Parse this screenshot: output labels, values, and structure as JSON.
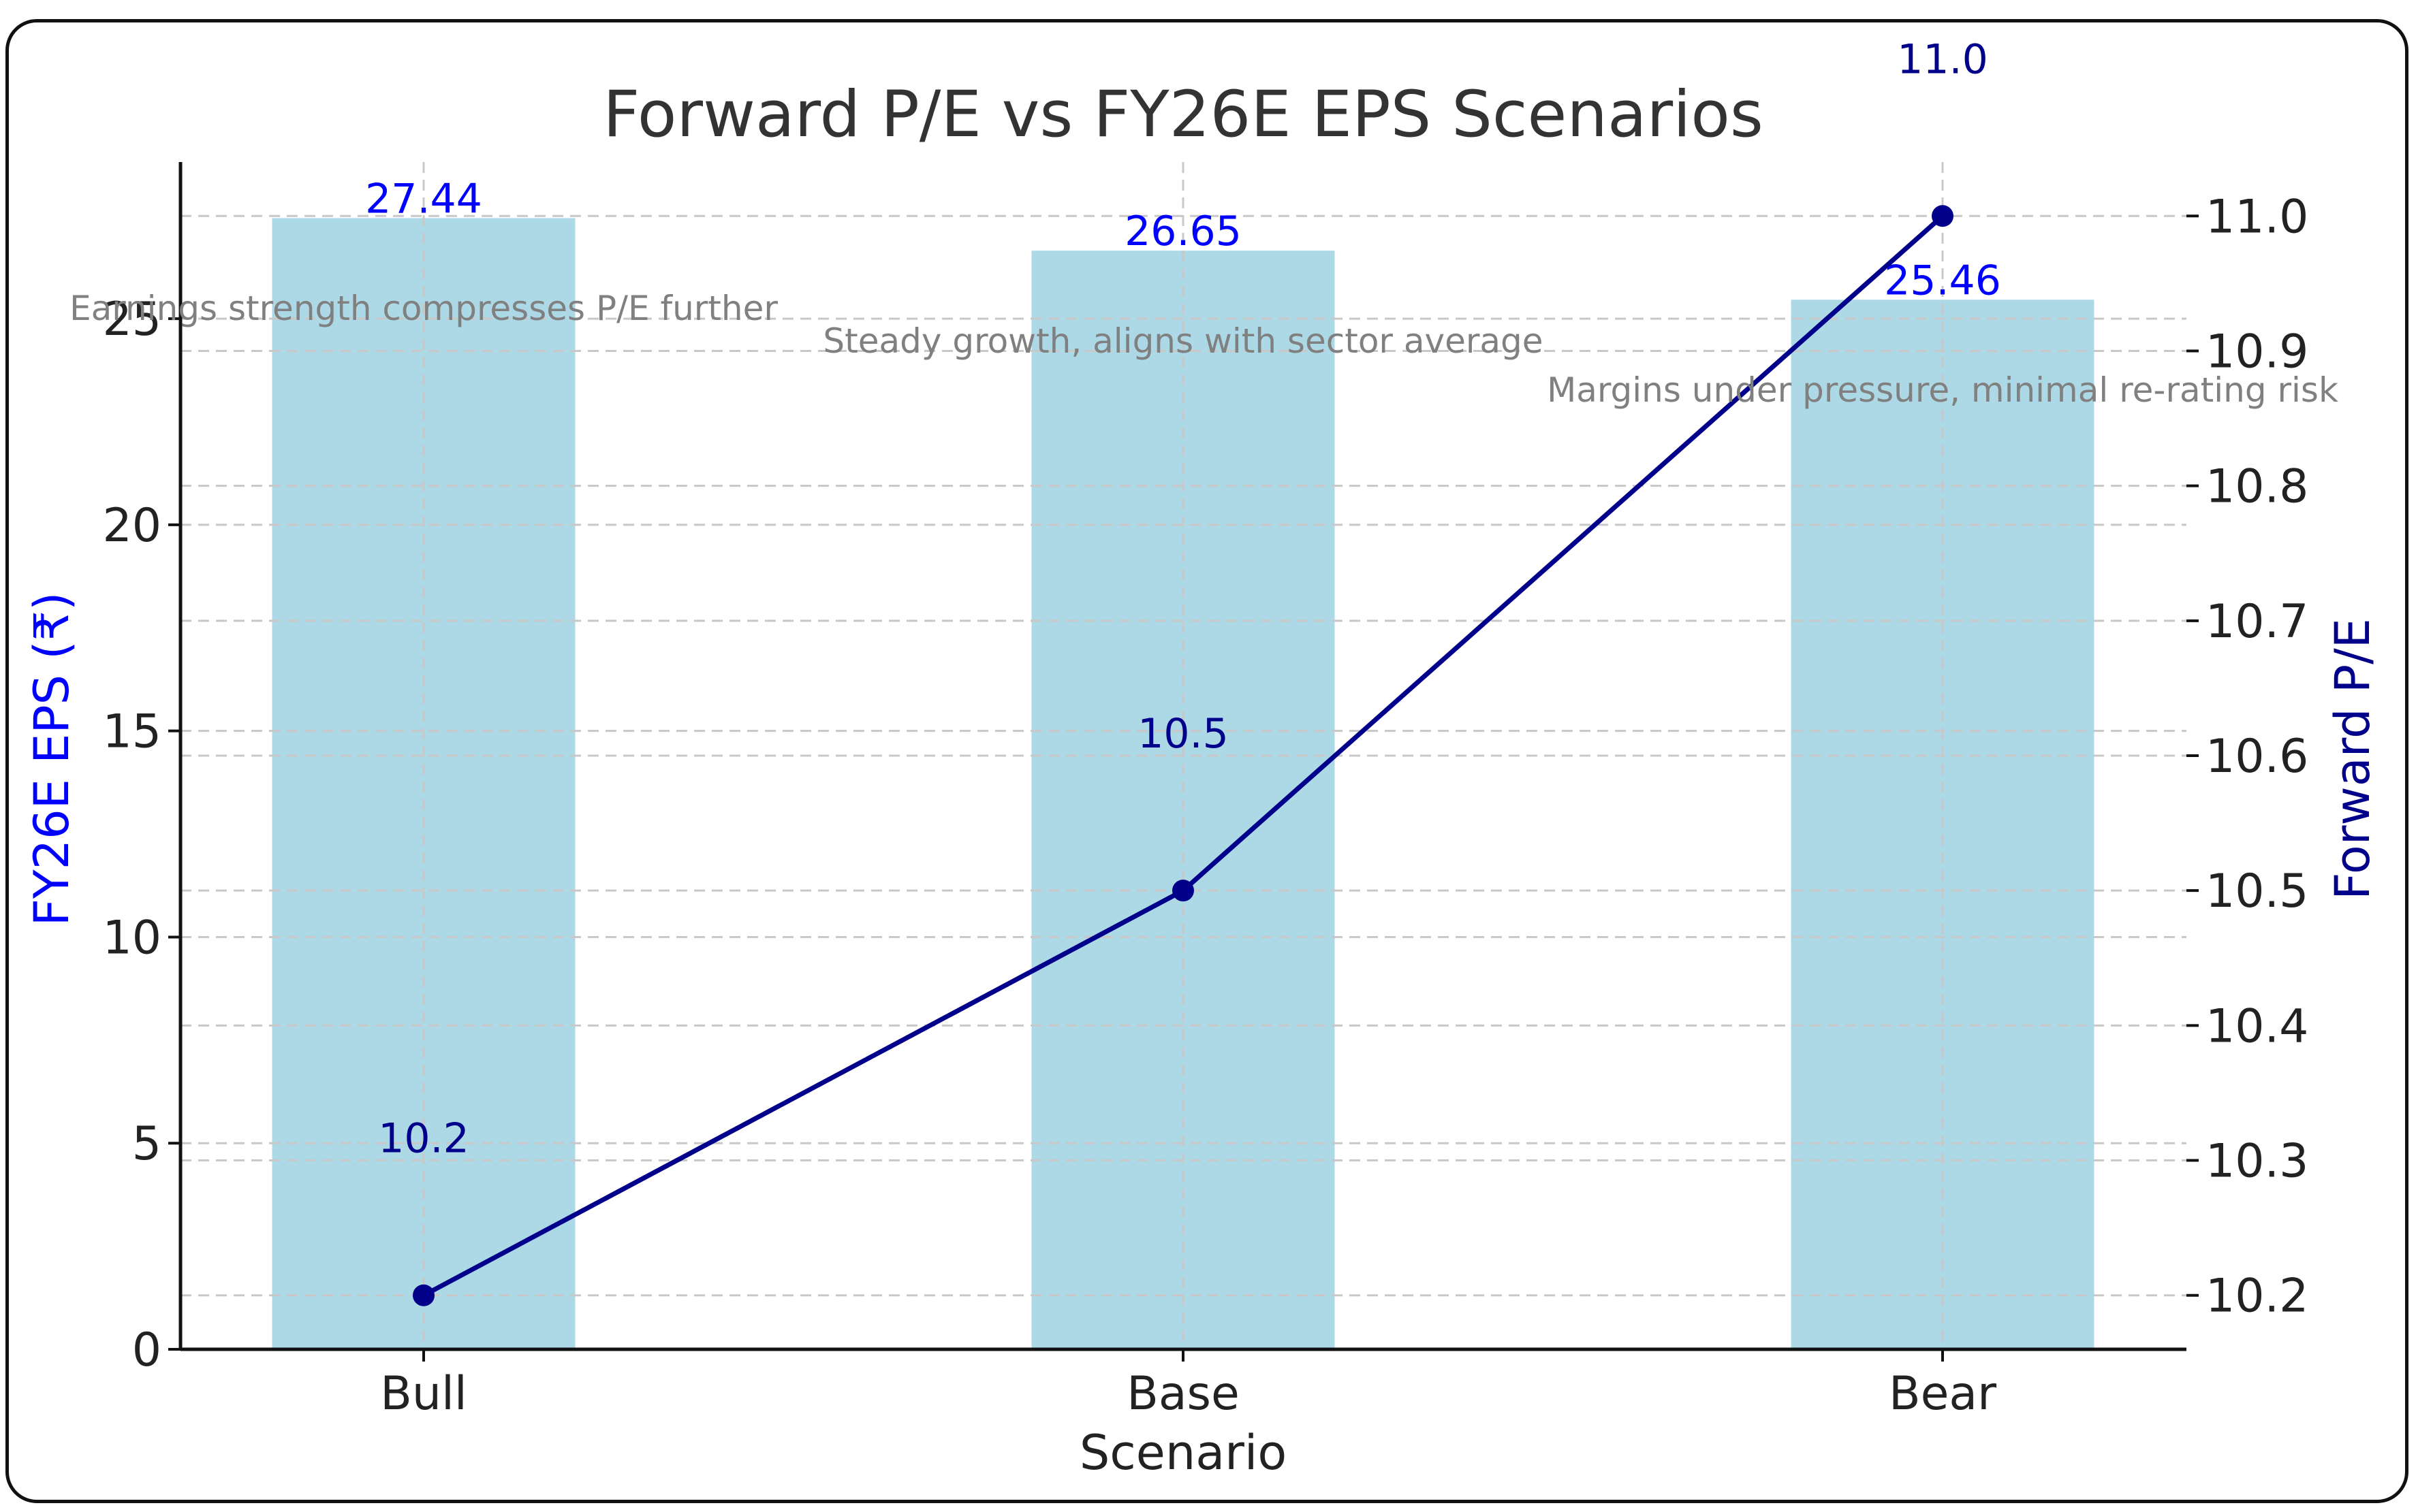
{
  "chart_data": {
    "type": "bar+line",
    "title": "Forward P/E vs FY26E EPS Scenarios",
    "xlabel": "Scenario",
    "categories": [
      "Bull",
      "Base",
      "Bear"
    ],
    "bars": {
      "name": "FY26E EPS (₹)",
      "values": [
        27.44,
        26.65,
        25.46
      ],
      "labels": [
        "27.44",
        "26.65",
        "25.46"
      ],
      "color": "#add8e6",
      "label_color": "#0000ff"
    },
    "line": {
      "name": "Forward P/E",
      "values": [
        10.2,
        10.5,
        11.0
      ],
      "labels": [
        "10.2",
        "10.5",
        "11.0"
      ],
      "color": "#00008b"
    },
    "left_axis": {
      "label": "FY26E EPS (₹)",
      "ylim": [
        0,
        28.8
      ],
      "ticks": [
        0,
        5,
        10,
        15,
        20,
        25
      ],
      "color": "#0000ff"
    },
    "right_axis": {
      "label": "Forward P/E",
      "ylim": [
        10.16,
        11.04
      ],
      "ticks": [
        10.2,
        10.3,
        10.4,
        10.5,
        10.6,
        10.7,
        10.8,
        10.9,
        11.0
      ],
      "tick_labels": [
        "10.2",
        "10.3",
        "10.4",
        "10.5",
        "10.6",
        "10.7",
        "10.8",
        "10.9",
        "11.0"
      ],
      "color": "#00008b"
    },
    "annotations": [
      "Earnings strength compresses P/E further",
      "Steady growth, aligns with sector average",
      "Margins under pressure, minimal re-rating risk"
    ],
    "grid": true
  }
}
